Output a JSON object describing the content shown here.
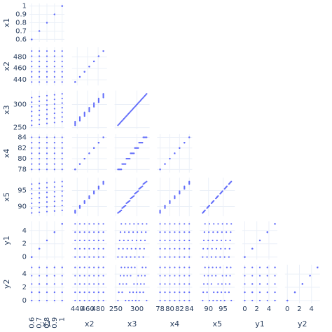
{
  "chart_data": {
    "type": "splom",
    "color": "#636efa",
    "grid": true,
    "diagonal": true,
    "upper_half": false,
    "dimensions": [
      {
        "label": "x1",
        "lim": [
          0.57,
          1.03
        ],
        "ticks": [
          0.6,
          0.7,
          0.8,
          0.9,
          1
        ],
        "values": [
          0.6,
          0.6,
          0.6,
          0.6,
          0.6,
          0.6,
          0.6,
          0.7,
          0.7,
          0.7,
          0.7,
          0.7,
          0.7,
          0.7,
          0.8,
          0.8,
          0.8,
          0.8,
          0.8,
          0.8,
          0.8,
          0.9,
          0.9,
          0.9,
          0.9,
          0.9,
          0.9,
          0.9,
          1,
          1,
          1,
          1,
          1,
          1,
          1
        ]
      },
      {
        "label": "x2",
        "lim": [
          430,
          497
        ],
        "ticks": [
          440,
          460,
          480
        ],
        "values": [
          436,
          445,
          454,
          463,
          472,
          481,
          490,
          436,
          445,
          454,
          463,
          472,
          481,
          490,
          436,
          445,
          454,
          463,
          472,
          481,
          490,
          436,
          445,
          454,
          463,
          472,
          481,
          490,
          436,
          445,
          454,
          463,
          472,
          481,
          490
        ]
      },
      {
        "label": "x3",
        "lim": [
          247,
          330
        ],
        "ticks": [
          250,
          300
        ],
        "values": [
          255,
          265,
          275,
          285,
          295,
          305,
          315,
          257,
          267,
          277,
          287,
          297,
          307,
          317,
          259,
          269,
          279,
          289,
          299,
          309,
          319,
          261,
          271,
          281,
          291,
          301,
          311,
          321,
          263,
          273,
          283,
          293,
          303,
          313,
          323
        ]
      },
      {
        "label": "x4",
        "lim": [
          77.4,
          84.6
        ],
        "ticks": [
          78,
          80,
          82,
          84
        ],
        "values": [
          78,
          79,
          80,
          81,
          82,
          83,
          84,
          78,
          79,
          80,
          81,
          82,
          83,
          84,
          78,
          79,
          80,
          81,
          82,
          83,
          84,
          78,
          79,
          80,
          81,
          82,
          83,
          84,
          78,
          79,
          80,
          81,
          82,
          83,
          84
        ]
      },
      {
        "label": "x5",
        "lim": [
          87,
          99
        ],
        "ticks": [
          90,
          95
        ],
        "values": [
          88,
          89.5,
          91,
          92.5,
          94,
          95.5,
          97,
          88.2,
          89.7,
          91.2,
          92.7,
          94.2,
          95.7,
          97.2,
          88.4,
          89.9,
          91.4,
          92.9,
          94.4,
          95.9,
          97.4,
          88.6,
          90.1,
          91.6,
          93.1,
          94.6,
          96.1,
          97.6,
          88.8,
          90.3,
          91.8,
          93.3,
          94.8,
          96.3,
          97.8
        ]
      },
      {
        "label": "y1",
        "lim": [
          -0.4,
          5.4
        ],
        "ticks": [
          0,
          2,
          4
        ],
        "values": [
          0,
          0,
          0,
          0,
          0,
          0,
          0,
          1.25,
          1.25,
          1.25,
          1.25,
          1.25,
          1.25,
          1.25,
          2.5,
          2.5,
          2.5,
          2.5,
          2.5,
          2.5,
          2.5,
          3.75,
          3.75,
          3.75,
          3.75,
          3.75,
          3.75,
          3.75,
          5,
          5,
          5,
          5,
          5,
          5,
          5
        ]
      },
      {
        "label": "y2",
        "lim": [
          -0.4,
          5.4
        ],
        "ticks": [
          0,
          2,
          4
        ],
        "values": [
          0,
          1.25,
          2.5,
          3.75,
          5,
          0,
          1.25,
          1.25,
          2.5,
          3.75,
          5,
          0,
          1.25,
          2.5,
          2.5,
          3.75,
          5,
          0,
          1.25,
          2.5,
          3.75,
          3.75,
          5,
          0,
          1.25,
          2.5,
          3.75,
          5,
          5,
          0,
          1.25,
          2.5,
          3.75,
          5,
          0
        ]
      }
    ]
  }
}
